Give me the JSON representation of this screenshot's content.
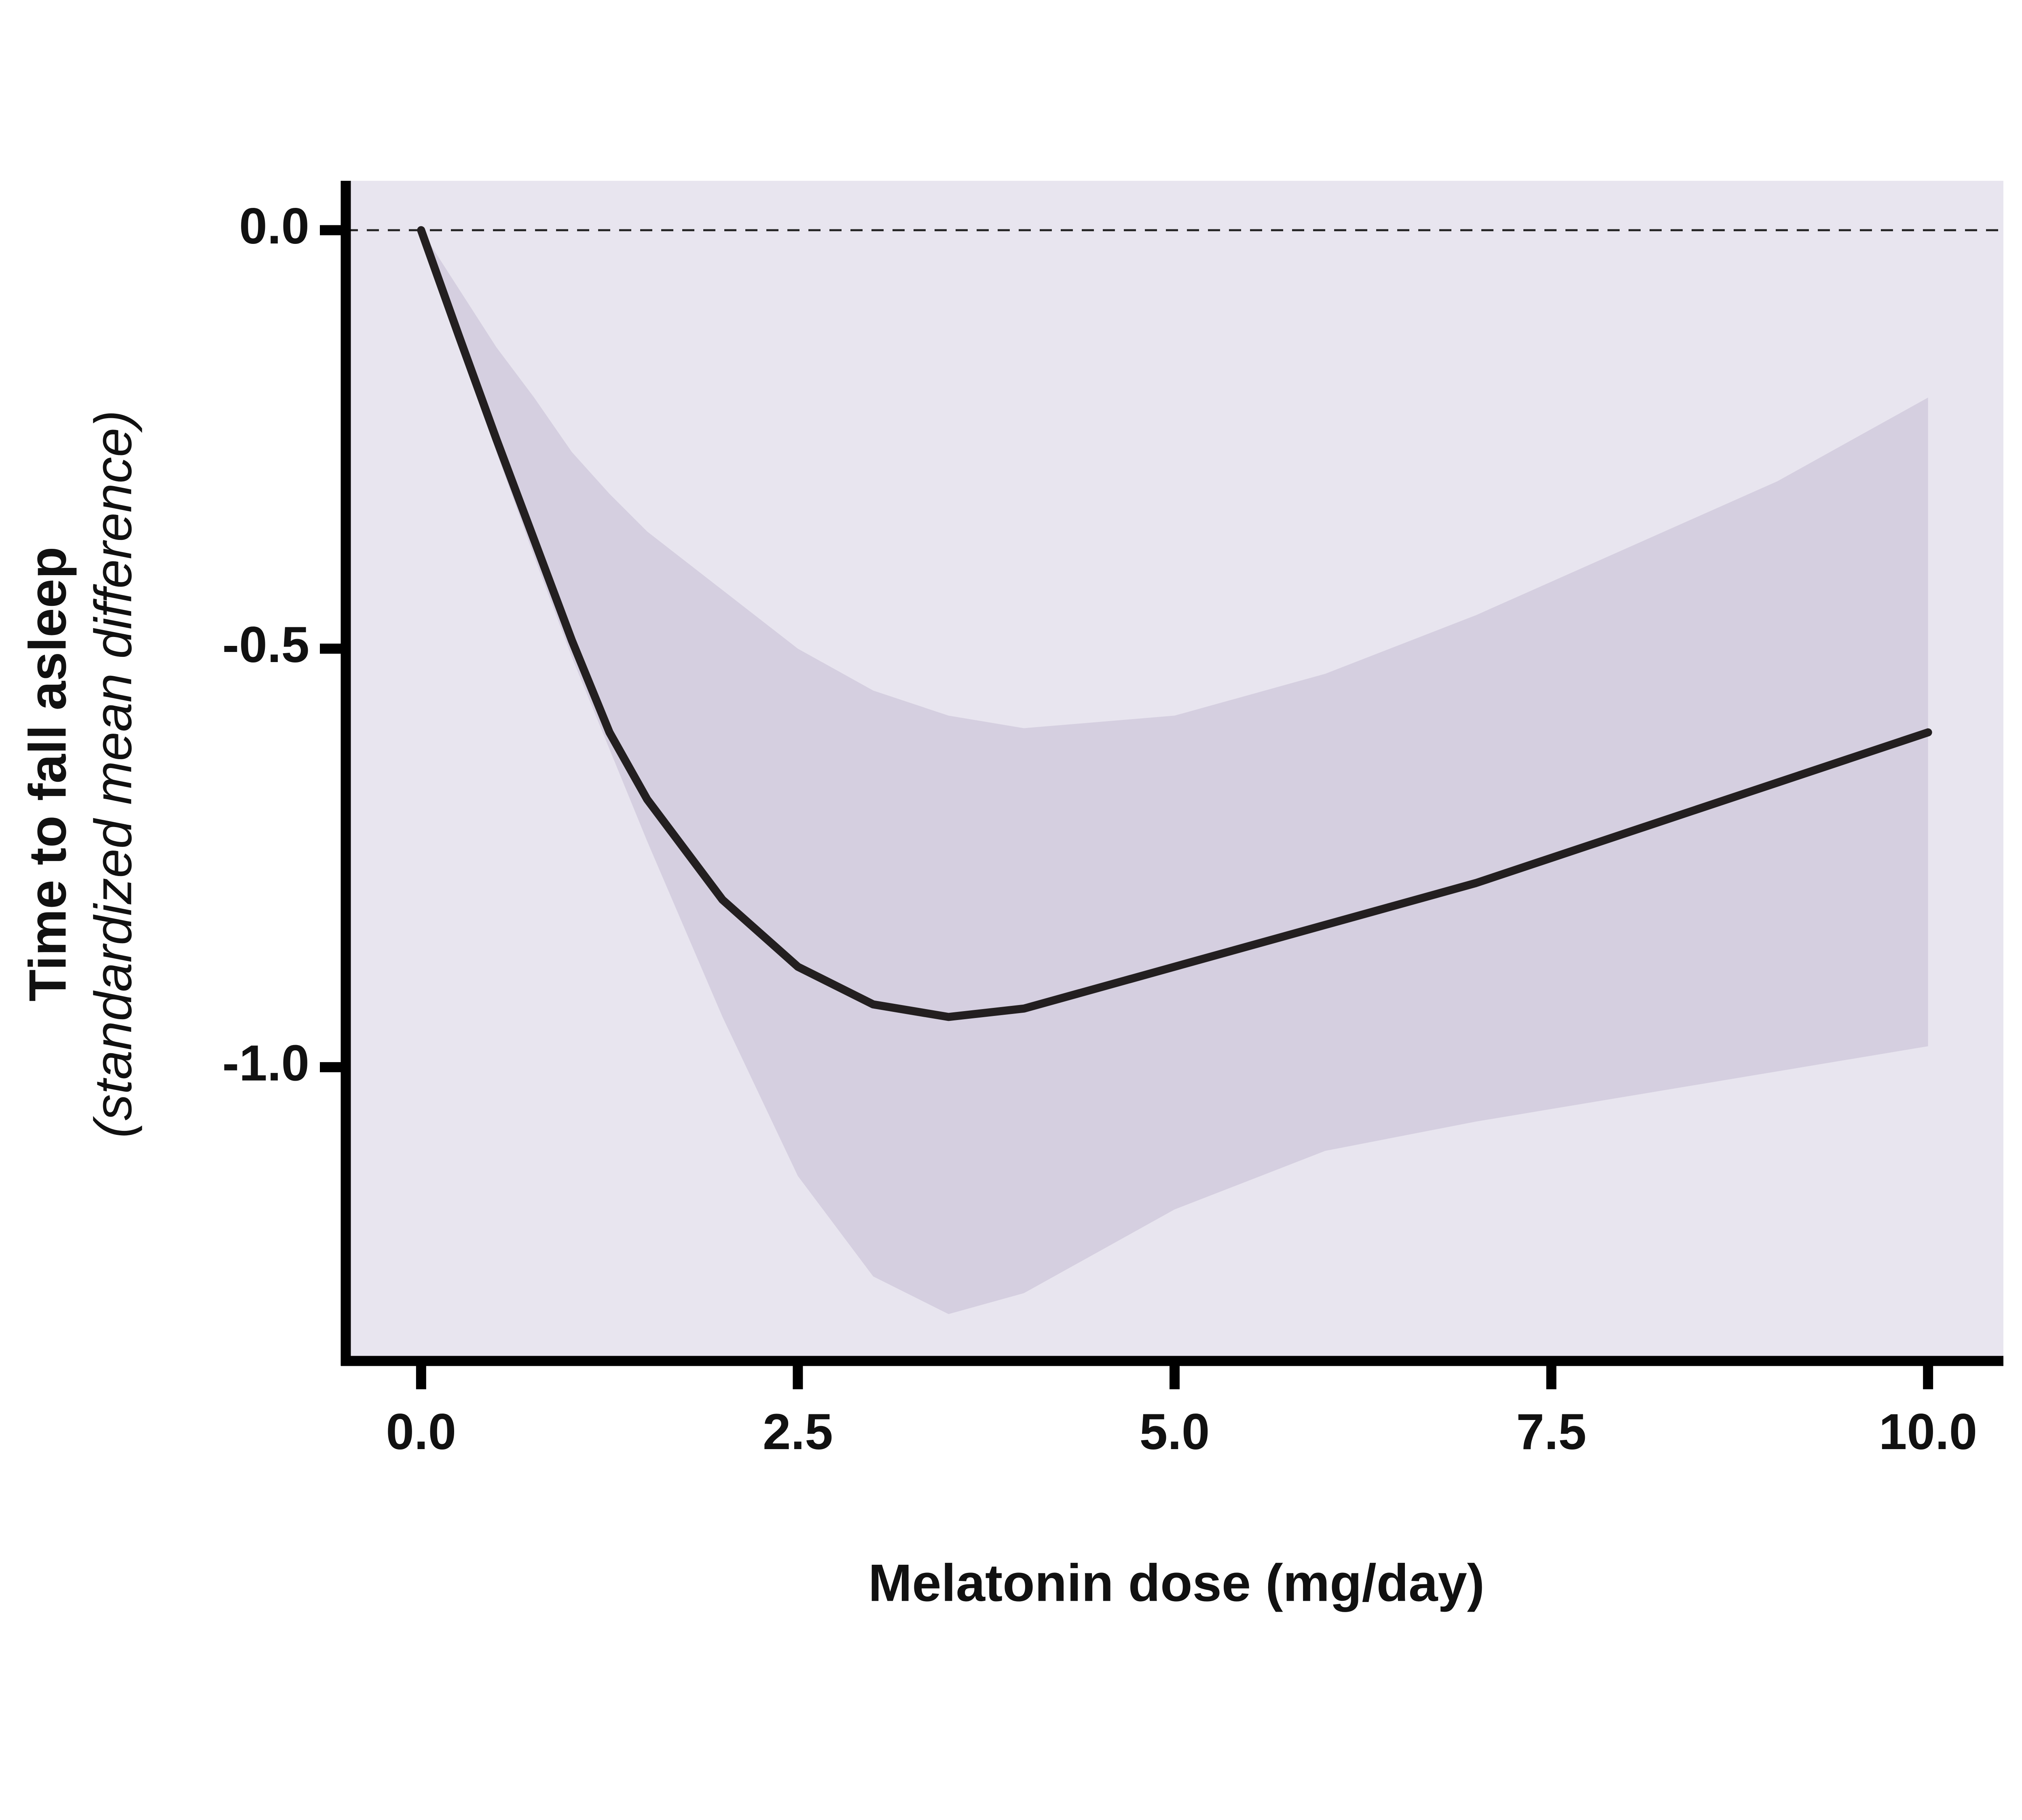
{
  "chart_data": {
    "type": "line",
    "x_label": "Melatonin dose (mg/day)",
    "y_label": "Time to fall asleep",
    "y_sublabel": "(standardized mean difference)",
    "x": [
      0,
      0.25,
      0.5,
      0.75,
      1.0,
      1.25,
      1.5,
      2.0,
      2.5,
      3.0,
      3.5,
      4.0,
      5.0,
      6.0,
      7.0,
      8.0,
      9.0,
      10.0
    ],
    "series": [
      {
        "color": "#231f20",
        "values": [
          0,
          -0.126,
          -0.25,
          -0.37,
          -0.49,
          -0.6,
          -0.68,
          -0.8,
          -0.88,
          -0.925,
          -0.94,
          -0.93,
          -0.88,
          -0.83,
          -0.78,
          -0.72,
          -0.66,
          -0.6
        ]
      }
    ],
    "band": {
      "color": "#d5cfe0",
      "lower": [
        0,
        -0.13,
        -0.265,
        -0.39,
        -0.51,
        -0.62,
        -0.73,
        -0.94,
        -1.13,
        -1.25,
        -1.295,
        -1.27,
        -1.17,
        -1.1,
        -1.065,
        -1.035,
        -1.005,
        -0.975
      ],
      "upper": [
        0,
        -0.07,
        -0.14,
        -0.2,
        -0.265,
        -0.315,
        -0.36,
        -0.43,
        -0.5,
        -0.55,
        -0.58,
        -0.595,
        -0.58,
        -0.53,
        -0.46,
        -0.38,
        -0.3,
        -0.2
      ]
    },
    "reference_line": 0,
    "background": "#e8e5ef",
    "xlim": [
      -0.5,
      10.5
    ],
    "ylim": [
      -1.351,
      0.059
    ],
    "xticks": [
      {
        "value": 0,
        "label": "0.0"
      },
      2.5,
      {
        "value": 5,
        "label": "5.0"
      },
      7.5,
      {
        "value": 10,
        "label": "10.0"
      }
    ],
    "yticks": [
      {
        "value": 0,
        "label": "0.0"
      },
      -0.5,
      {
        "value": -1,
        "label": "-1.0"
      }
    ]
  }
}
